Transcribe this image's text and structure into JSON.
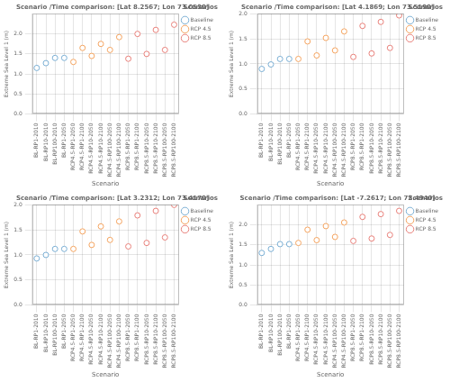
{
  "chart_data": [
    {
      "type": "scatter",
      "title": "Scenario /Time comparison: [Lat 8.2567; Lon 73.0530]",
      "xlabel": "Scenario",
      "ylabel": "Extreme Sea Level 1 (m)",
      "categories": [
        "BL-RP1-2010",
        "BL-RP10-2010",
        "BL-RP100-2010",
        "BL-RP1-2050",
        "RCP4.5-RP1-2050",
        "RCP4.5-RP1-2100",
        "RCP4.5-RP10-2050",
        "RCP4.5-RP10-2100",
        "RCP4.5-RP100-2050",
        "RCP4.5-RP100-2100",
        "RCP8.5-RP1-2050",
        "RCP8.5-RP1-2100",
        "RCP8.5-RP10-2050",
        "RCP8.5-RP10-2100",
        "RCP8.5-RP100-2050",
        "RCP8.5-RP100-2100"
      ],
      "series": [
        {
          "name": "Baseline",
          "color": "#7bafd4",
          "marker": "circle",
          "values": [
            1.15,
            1.27,
            1.4,
            1.4,
            null,
            null,
            null,
            null,
            null,
            null,
            null,
            null,
            null,
            null,
            null,
            null
          ]
        },
        {
          "name": "RCP 4.5",
          "color": "#f4a460",
          "marker": "circle",
          "values": [
            null,
            null,
            null,
            null,
            1.3,
            1.65,
            1.45,
            1.75,
            1.6,
            1.92,
            null,
            null,
            null,
            null,
            null,
            null
          ]
        },
        {
          "name": "RCP 8.5",
          "color": "#e8807a",
          "marker": "circle",
          "values": [
            null,
            null,
            null,
            null,
            null,
            null,
            null,
            null,
            null,
            null,
            1.38,
            2.0,
            1.5,
            2.1,
            1.6,
            2.23
          ]
        }
      ],
      "ylim": [
        0.0,
        2.5
      ],
      "yticks": [
        {
          "value": 0.0,
          "label": "0.0"
        },
        {
          "value": 0.5,
          "label": "0.5"
        },
        {
          "value": 1.0,
          "label": "1.0"
        },
        {
          "value": 1.5,
          "label": "1.5"
        },
        {
          "value": 2.0,
          "label": "2.0"
        }
      ],
      "grid": true,
      "legend": "right",
      "legend_title": "Scenarios"
    },
    {
      "type": "scatter",
      "title": "Scenario /Time comparison: [Lat 4.1869; Lon 73.5190]",
      "xlabel": "Scenario",
      "ylabel": "Extreme Sea Level 1 (m)",
      "categories": [
        "BL-RP1-2010",
        "BL-RP10-2010",
        "BL-RP100-2010",
        "BL-RP1-2050",
        "RCP4.5-RP1-2050",
        "RCP4.5-RP1-2100",
        "RCP4.5-RP10-2050",
        "RCP4.5-RP10-2100",
        "RCP4.5-RP100-2050",
        "RCP4.5-RP100-2100",
        "RCP8.5-RP1-2050",
        "RCP8.5-RP1-2100",
        "RCP8.5-RP10-2050",
        "RCP8.5-RP10-2100",
        "RCP8.5-RP100-2050",
        "RCP8.5-RP100-2100"
      ],
      "series": [
        {
          "name": "Baseline",
          "color": "#7bafd4",
          "marker": "circle",
          "values": [
            0.9,
            0.99,
            1.1,
            1.1,
            null,
            null,
            null,
            null,
            null,
            null,
            null,
            null,
            null,
            null,
            null,
            null
          ]
        },
        {
          "name": "RCP 4.5",
          "color": "#f4a460",
          "marker": "circle",
          "values": [
            null,
            null,
            null,
            null,
            1.1,
            1.45,
            1.17,
            1.52,
            1.27,
            1.65,
            null,
            null,
            null,
            null,
            null,
            null
          ]
        },
        {
          "name": "RCP 8.5",
          "color": "#e8807a",
          "marker": "circle",
          "values": [
            null,
            null,
            null,
            null,
            null,
            null,
            null,
            null,
            null,
            null,
            1.14,
            1.76,
            1.21,
            1.84,
            1.32,
            1.97
          ]
        }
      ],
      "ylim": [
        0.0,
        2.0
      ],
      "yticks": [
        {
          "value": 0.0,
          "label": "0.0"
        },
        {
          "value": 0.5,
          "label": "0.5"
        },
        {
          "value": 1.0,
          "label": "1.0"
        },
        {
          "value": 1.5,
          "label": "1.5"
        },
        {
          "value": 2.0,
          "label": "2.0"
        }
      ],
      "grid": true,
      "legend": "right",
      "legend_title": "Scenarios"
    },
    {
      "type": "scatter",
      "title": "Scenario /Time comparison: [Lat 3.2312; Lon 73.4170]",
      "xlabel": "Scenario",
      "ylabel": "Extreme Sea Level 1 (m)",
      "categories": [
        "BL-RP1-2010",
        "BL-RP10-2010",
        "BL-RP100-2010",
        "BL-RP1-2050",
        "RCP4.5-RP1-2050",
        "RCP4.5-RP1-2100",
        "RCP4.5-RP10-2050",
        "RCP4.5-RP10-2100",
        "RCP4.5-RP100-2050",
        "RCP4.5-RP100-2100",
        "RCP8.5-RP1-2050",
        "RCP8.5-RP1-2100",
        "RCP8.5-RP10-2050",
        "RCP8.5-RP10-2100",
        "RCP8.5-RP100-2050",
        "RCP8.5-RP100-2100"
      ],
      "series": [
        {
          "name": "Baseline",
          "color": "#7bafd4",
          "marker": "circle",
          "values": [
            0.93,
            1.0,
            1.12,
            1.12,
            null,
            null,
            null,
            null,
            null,
            null,
            null,
            null,
            null,
            null,
            null,
            null
          ]
        },
        {
          "name": "RCP 4.5",
          "color": "#f4a460",
          "marker": "circle",
          "values": [
            null,
            null,
            null,
            null,
            1.12,
            1.47,
            1.2,
            1.57,
            1.3,
            1.67,
            null,
            null,
            null,
            null,
            null,
            null
          ]
        },
        {
          "name": "RCP 8.5",
          "color": "#e8807a",
          "marker": "circle",
          "values": [
            null,
            null,
            null,
            null,
            null,
            null,
            null,
            null,
            null,
            null,
            1.17,
            1.79,
            1.24,
            1.88,
            1.35,
            2.0
          ]
        }
      ],
      "ylim": [
        0.0,
        2.0
      ],
      "yticks": [
        {
          "value": 0.0,
          "label": "0.0"
        },
        {
          "value": 0.5,
          "label": "0.5"
        },
        {
          "value": 1.0,
          "label": "1.0"
        },
        {
          "value": 1.5,
          "label": "1.5"
        },
        {
          "value": 2.0,
          "label": "2.0"
        }
      ],
      "grid": true,
      "legend": "right",
      "legend_title": "Scenarios"
    },
    {
      "type": "scatter",
      "title": "Scenario /Time comparison: [Lat -7.2617; Lon 72.4940]",
      "xlabel": "Scenario",
      "ylabel": "Extreme Sea Level 1 (m)",
      "categories": [
        "BL-RP1-2010",
        "BL-RP10-2010",
        "BL-RP100-2010",
        "BL-RP1-2050",
        "RCP4.5-RP1-2050",
        "RCP4.5-RP1-2100",
        "RCP4.5-RP10-2050",
        "RCP4.5-RP10-2100",
        "RCP4.5-RP100-2050",
        "RCP4.5-RP100-2100",
        "RCP8.5-RP1-2050",
        "RCP8.5-RP1-2100",
        "RCP8.5-RP10-2050",
        "RCP8.5-RP10-2100",
        "RCP8.5-RP100-2050",
        "RCP8.5-RP100-2100"
      ],
      "series": [
        {
          "name": "Baseline",
          "color": "#7bafd4",
          "marker": "circle",
          "values": [
            1.3,
            1.4,
            1.52,
            1.52,
            null,
            null,
            null,
            null,
            null,
            null,
            null,
            null,
            null,
            null,
            null,
            null
          ]
        },
        {
          "name": "RCP 4.5",
          "color": "#f4a460",
          "marker": "circle",
          "values": [
            null,
            null,
            null,
            null,
            1.55,
            1.88,
            1.62,
            1.97,
            1.7,
            2.06,
            null,
            null,
            null,
            null,
            null,
            null
          ]
        },
        {
          "name": "RCP 8.5",
          "color": "#e8807a",
          "marker": "circle",
          "values": [
            null,
            null,
            null,
            null,
            null,
            null,
            null,
            null,
            null,
            null,
            1.6,
            2.2,
            1.66,
            2.27,
            1.75,
            2.35
          ]
        }
      ],
      "ylim": [
        0.0,
        2.5
      ],
      "yticks": [
        {
          "value": 0.0,
          "label": "0.0"
        },
        {
          "value": 0.5,
          "label": "0.5"
        },
        {
          "value": 1.0,
          "label": "1.0"
        },
        {
          "value": 1.5,
          "label": "1.5"
        },
        {
          "value": 2.0,
          "label": "2.0"
        }
      ],
      "grid": true,
      "legend": "right",
      "legend_title": "Scenarios"
    }
  ]
}
